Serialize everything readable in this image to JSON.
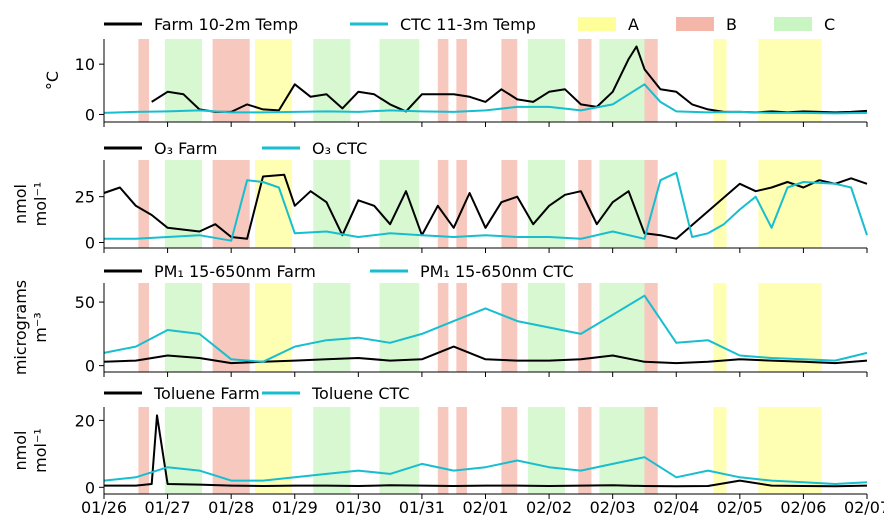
{
  "chart_data": [
    {
      "type": "line",
      "ylabel": "°C",
      "ylim": [
        -1.5,
        15
      ],
      "yticks": [
        0,
        10
      ],
      "series": [
        {
          "name": "Farm 10-2m Temp",
          "color": "#000000",
          "x": [
            "01/26 18:00",
            "01/27 00:00",
            "01/27 06:00",
            "01/27 12:00",
            "01/27 18:00",
            "01/28 00:00",
            "01/28 06:00",
            "01/28 12:00",
            "01/28 18:00",
            "01/29 00:00",
            "01/29 06:00",
            "01/29 12:00",
            "01/29 18:00",
            "01/30 00:00",
            "01/30 06:00",
            "01/30 12:00",
            "01/30 18:00",
            "01/31 00:00",
            "01/31 12:00",
            "01/31 18:00",
            "02/01 00:00",
            "02/01 06:00",
            "02/01 12:00",
            "02/01 18:00",
            "02/02 00:00",
            "02/02 06:00",
            "02/02 12:00",
            "02/02 18:00",
            "02/03 00:00",
            "02/03 06:00",
            "02/03 09:00",
            "02/03 12:00",
            "02/03 18:00",
            "02/04 00:00",
            "02/04 06:00",
            "02/04 12:00",
            "02/04 18:00",
            "02/05 00:00",
            "02/05 06:00",
            "02/05 12:00",
            "02/05 18:00",
            "02/06 00:00",
            "02/06 06:00",
            "02/06 12:00",
            "02/06 18:00",
            "02/07 00:00"
          ],
          "y": [
            2.5,
            4.5,
            4.0,
            1.0,
            0.5,
            0.5,
            2.0,
            1.0,
            0.8,
            6.0,
            3.5,
            4.0,
            1.2,
            4.5,
            4.0,
            2.0,
            0.6,
            4.0,
            4.0,
            3.5,
            2.5,
            5.0,
            3.0,
            2.5,
            4.5,
            5.0,
            2.0,
            1.5,
            4.5,
            11.0,
            13.5,
            9.0,
            5.0,
            4.5,
            2.0,
            1.0,
            0.5,
            0.5,
            0.4,
            0.6,
            0.4,
            0.6,
            0.5,
            0.4,
            0.5,
            0.7
          ]
        },
        {
          "name": "CTC 11-3m Temp",
          "color": "#17becf",
          "x": [
            "01/26 00:00",
            "01/26 12:00",
            "01/27 00:00",
            "01/27 12:00",
            "01/28 00:00",
            "01/28 12:00",
            "01/29 00:00",
            "01/29 12:00",
            "01/30 00:00",
            "01/30 12:00",
            "01/31 00:00",
            "01/31 12:00",
            "02/01 00:00",
            "02/01 12:00",
            "02/02 00:00",
            "02/02 12:00",
            "02/03 00:00",
            "02/03 06:00",
            "02/03 12:00",
            "02/03 18:00",
            "02/04 00:00",
            "02/04 12:00",
            "02/05 00:00",
            "02/05 12:00",
            "02/06 00:00",
            "02/06 12:00",
            "02/07 00:00"
          ],
          "y": [
            0.3,
            0.5,
            0.6,
            0.8,
            0.4,
            0.4,
            0.5,
            0.6,
            0.5,
            0.8,
            0.6,
            0.5,
            0.8,
            1.5,
            1.5,
            0.8,
            2.0,
            4.0,
            6.0,
            2.5,
            0.6,
            0.4,
            0.5,
            0.3,
            0.3,
            0.2,
            0.3
          ]
        }
      ],
      "shading_legend": [
        {
          "name": "A",
          "color": "#ffff99"
        },
        {
          "name": "B",
          "color": "#f4b6a8"
        },
        {
          "name": "C",
          "color": "#c9f5c2"
        }
      ]
    },
    {
      "type": "line",
      "ylabel": "nmol mol⁻¹",
      "ylim": [
        -3,
        45
      ],
      "yticks": [
        0,
        25
      ],
      "series": [
        {
          "name": "O3 Farm",
          "color": "#000000",
          "x": [
            "01/26 00:00",
            "01/26 06:00",
            "01/26 12:00",
            "01/26 18:00",
            "01/27 00:00",
            "01/27 12:00",
            "01/27 18:00",
            "01/28 00:00",
            "01/28 06:00",
            "01/28 12:00",
            "01/28 20:00",
            "01/29 00:00",
            "01/29 06:00",
            "01/29 12:00",
            "01/29 18:00",
            "01/30 00:00",
            "01/30 06:00",
            "01/30 12:00",
            "01/30 18:00",
            "01/31 00:00",
            "01/31 06:00",
            "01/31 12:00",
            "01/31 18:00",
            "02/01 00:00",
            "02/01 06:00",
            "02/01 12:00",
            "02/01 18:00",
            "02/02 00:00",
            "02/02 06:00",
            "02/02 12:00",
            "02/02 18:00",
            "02/03 00:00",
            "02/03 06:00",
            "02/03 12:00",
            "02/03 18:00",
            "02/04 00:00",
            "02/05 00:00",
            "02/05 06:00",
            "02/05 12:00",
            "02/05 18:00",
            "02/06 00:00",
            "02/06 06:00",
            "02/06 12:00",
            "02/06 18:00",
            "02/07 00:00"
          ],
          "y": [
            27,
            30,
            20,
            15,
            8,
            6,
            10,
            3,
            2,
            36,
            37,
            20,
            28,
            22,
            4,
            23,
            20,
            10,
            28,
            4,
            20,
            8,
            27,
            8,
            22,
            25,
            10,
            20,
            26,
            28,
            10,
            22,
            28,
            5,
            4,
            2,
            32,
            28,
            30,
            33,
            30,
            34,
            32,
            35,
            32
          ]
        },
        {
          "name": "O3 CTC",
          "color": "#17becf",
          "x": [
            "01/26 00:00",
            "01/26 12:00",
            "01/27 00:00",
            "01/27 12:00",
            "01/28 00:00",
            "01/28 06:00",
            "01/28 12:00",
            "01/28 18:00",
            "01/29 00:00",
            "01/29 12:00",
            "01/30 00:00",
            "01/30 12:00",
            "01/31 00:00",
            "01/31 12:00",
            "02/01 00:00",
            "02/01 12:00",
            "02/02 00:00",
            "02/02 12:00",
            "02/03 00:00",
            "02/03 12:00",
            "02/03 18:00",
            "02/04 00:00",
            "02/04 06:00",
            "02/04 12:00",
            "02/04 18:00",
            "02/05 00:00",
            "02/05 06:00",
            "02/05 12:00",
            "02/05 18:00",
            "02/06 00:00",
            "02/06 12:00",
            "02/06 18:00",
            "02/07 00:00"
          ],
          "y": [
            2,
            2,
            3,
            4,
            1,
            34,
            33,
            30,
            5,
            6,
            3,
            5,
            4,
            3,
            4,
            3,
            3,
            2,
            6,
            2,
            34,
            38,
            3,
            5,
            10,
            18,
            25,
            8,
            30,
            33,
            32,
            30,
            4
          ]
        }
      ]
    },
    {
      "type": "line",
      "ylabel": "micrograms m⁻³",
      "ylim": [
        -5,
        65
      ],
      "yticks": [
        0,
        50
      ],
      "series": [
        {
          "name": "PM1 15-650nm Farm",
          "color": "#000000",
          "x": [
            "01/26 00:00",
            "01/26 12:00",
            "01/27 00:00",
            "01/27 12:00",
            "01/28 00:00",
            "01/28 12:00",
            "01/29 00:00",
            "01/29 12:00",
            "01/30 00:00",
            "01/30 12:00",
            "01/31 00:00",
            "01/31 12:00",
            "02/01 00:00",
            "02/01 12:00",
            "02/02 00:00",
            "02/02 12:00",
            "02/03 00:00",
            "02/03 12:00",
            "02/04 00:00",
            "02/04 12:00",
            "02/05 00:00",
            "02/05 12:00",
            "02/06 00:00",
            "02/06 12:00",
            "02/07 00:00"
          ],
          "y": [
            3,
            4,
            8,
            6,
            2,
            3,
            4,
            5,
            6,
            4,
            5,
            15,
            5,
            4,
            4,
            5,
            8,
            3,
            2,
            3,
            5,
            4,
            3,
            2,
            4
          ]
        },
        {
          "name": "PM1 15-650nm CTC",
          "color": "#17becf",
          "x": [
            "01/26 00:00",
            "01/26 12:00",
            "01/27 00:00",
            "01/27 12:00",
            "01/28 00:00",
            "01/28 12:00",
            "01/29 00:00",
            "01/29 12:00",
            "01/30 00:00",
            "01/30 12:00",
            "01/31 00:00",
            "01/31 12:00",
            "02/01 00:00",
            "02/01 12:00",
            "02/02 00:00",
            "02/02 12:00",
            "02/03 00:00",
            "02/03 12:00",
            "02/04 00:00",
            "02/04 12:00",
            "02/05 00:00",
            "02/05 12:00",
            "02/06 00:00",
            "02/06 12:00",
            "02/07 00:00"
          ],
          "y": [
            10,
            15,
            28,
            25,
            5,
            3,
            15,
            20,
            22,
            18,
            25,
            35,
            45,
            35,
            30,
            25,
            40,
            55,
            18,
            20,
            8,
            6,
            5,
            4,
            10
          ]
        }
      ]
    },
    {
      "type": "line",
      "ylabel": "nmol mol⁻¹",
      "ylim": [
        -2,
        24
      ],
      "yticks": [
        0,
        20
      ],
      "series": [
        {
          "name": "Toluene Farm",
          "color": "#000000",
          "x": [
            "01/26 00:00",
            "01/26 12:00",
            "01/26 18:00",
            "01/26 20:00",
            "01/27 00:00",
            "01/27 12:00",
            "01/28 00:00",
            "01/28 12:00",
            "01/29 00:00",
            "01/29 12:00",
            "01/30 00:00",
            "01/30 12:00",
            "01/31 00:00",
            "01/31 12:00",
            "02/01 00:00",
            "02/01 12:00",
            "02/02 00:00",
            "02/02 12:00",
            "02/03 00:00",
            "02/03 12:00",
            "02/04 00:00",
            "02/04 12:00",
            "02/05 00:00",
            "02/05 12:00",
            "02/06 00:00",
            "02/06 12:00",
            "02/07 00:00"
          ],
          "y": [
            0.5,
            0.5,
            1.0,
            21.5,
            1.0,
            0.8,
            0.5,
            0.4,
            0.5,
            0.5,
            0.4,
            0.6,
            0.5,
            0.4,
            0.5,
            0.5,
            0.4,
            0.5,
            0.6,
            0.4,
            0.3,
            0.4,
            2.0,
            0.5,
            0.4,
            0.3,
            0.5
          ]
        },
        {
          "name": "Toluene CTC",
          "color": "#17becf",
          "x": [
            "01/26 00:00",
            "01/26 12:00",
            "01/27 00:00",
            "01/27 12:00",
            "01/28 00:00",
            "01/28 12:00",
            "01/29 00:00",
            "01/29 12:00",
            "01/30 00:00",
            "01/30 12:00",
            "01/31 00:00",
            "01/31 12:00",
            "02/01 00:00",
            "02/01 12:00",
            "02/02 00:00",
            "02/02 12:00",
            "02/03 00:00",
            "02/03 12:00",
            "02/04 00:00",
            "02/04 12:00",
            "02/05 00:00",
            "02/05 12:00",
            "02/06 00:00",
            "02/06 12:00",
            "02/07 00:00"
          ],
          "y": [
            2,
            3,
            6,
            5,
            2,
            2,
            3,
            4,
            5,
            4,
            7,
            5,
            6,
            8,
            6,
            5,
            7,
            9,
            3,
            5,
            3,
            2,
            1.5,
            1,
            1.5
          ]
        }
      ]
    }
  ],
  "shaded_periods": [
    {
      "cat": "B",
      "start": "01/26 13:00",
      "end": "01/26 17:00"
    },
    {
      "cat": "C",
      "start": "01/26 23:00",
      "end": "01/27 13:00"
    },
    {
      "cat": "B",
      "start": "01/27 17:00",
      "end": "01/28 07:00"
    },
    {
      "cat": "A",
      "start": "01/28 09:00",
      "end": "01/28 23:00"
    },
    {
      "cat": "C",
      "start": "01/29 07:00",
      "end": "01/29 21:00"
    },
    {
      "cat": "C",
      "start": "01/30 08:00",
      "end": "01/30 23:00"
    },
    {
      "cat": "B",
      "start": "01/31 06:00",
      "end": "01/31 10:00"
    },
    {
      "cat": "B",
      "start": "01/31 13:00",
      "end": "01/31 17:00"
    },
    {
      "cat": "B",
      "start": "02/01 06:00",
      "end": "02/01 12:00"
    },
    {
      "cat": "C",
      "start": "02/01 16:00",
      "end": "02/02 06:00"
    },
    {
      "cat": "B",
      "start": "02/02 11:00",
      "end": "02/02 16:00"
    },
    {
      "cat": "C",
      "start": "02/02 19:00",
      "end": "02/03 12:00"
    },
    {
      "cat": "B",
      "start": "02/03 12:00",
      "end": "02/03 17:00"
    },
    {
      "cat": "A",
      "start": "02/04 14:00",
      "end": "02/04 19:00"
    },
    {
      "cat": "A",
      "start": "02/05 07:00",
      "end": "02/06 07:00"
    }
  ],
  "x_axis": {
    "start": "01/26 00:00",
    "end": "02/07 00:00",
    "tick_labels": [
      "01/26",
      "01/27",
      "01/28",
      "01/29",
      "01/30",
      "01/31",
      "02/01",
      "02/02",
      "02/03",
      "02/04",
      "02/05",
      "02/06",
      "02/07"
    ]
  },
  "legends": [
    {
      "items": [
        {
          "label": "Farm 10-2m Temp",
          "color": "#000000",
          "kind": "line"
        },
        {
          "label": "CTC 11-3m Temp",
          "color": "#17becf",
          "kind": "line"
        },
        {
          "label": "A",
          "color": "#ffff99",
          "kind": "patch"
        },
        {
          "label": "B",
          "color": "#f4b6a8",
          "kind": "patch"
        },
        {
          "label": "C",
          "color": "#c9f5c2",
          "kind": "patch"
        }
      ]
    },
    {
      "items": [
        {
          "label": "O₃ Farm",
          "color": "#000000",
          "kind": "line"
        },
        {
          "label": "O₃ CTC",
          "color": "#17becf",
          "kind": "line"
        }
      ]
    },
    {
      "items": [
        {
          "label": "PM₁ 15-650nm Farm",
          "color": "#000000",
          "kind": "line"
        },
        {
          "label": "PM₁ 15-650nm CTC",
          "color": "#17becf",
          "kind": "line"
        }
      ]
    },
    {
      "items": [
        {
          "label": "Toluene Farm",
          "color": "#000000",
          "kind": "line"
        },
        {
          "label": "Toluene CTC",
          "color": "#17becf",
          "kind": "line"
        }
      ]
    }
  ],
  "colors": {
    "A": "#ffff99",
    "B": "#f4b6a8",
    "C": "#c9f5c2",
    "farm": "#000000",
    "ctc": "#17becf"
  }
}
